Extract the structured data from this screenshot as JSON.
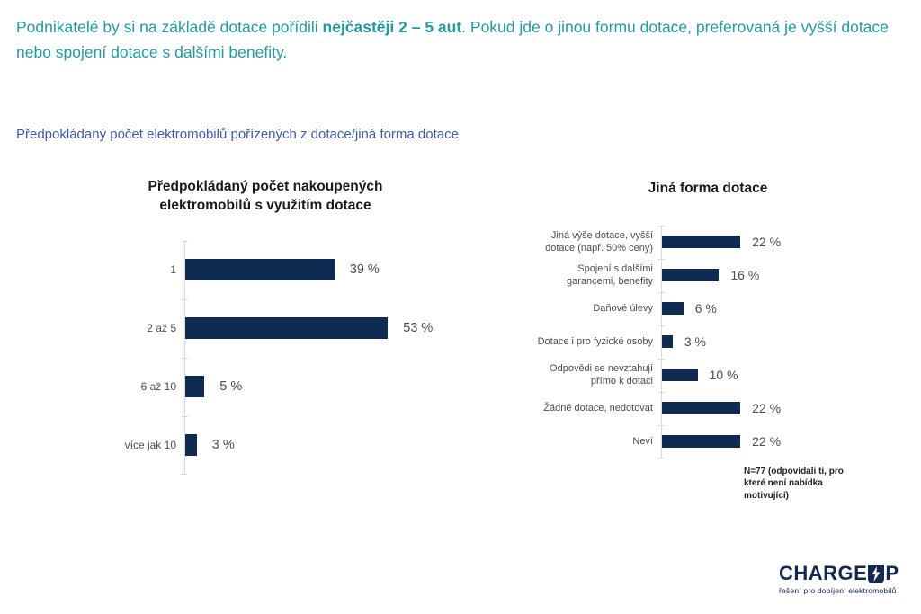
{
  "header": {
    "part1": "Podnikatelé by si na základě dotace pořídili ",
    "bold": "nejčastěji 2 – 5 aut",
    "part2": ". Pokud jde o jinou formu dotace, preferovaná je vyšší dotace nebo spojení dotace s dalšími benefity."
  },
  "subtitle": "Předpokládaný počet elektromobilů pořízených z dotace/jiná forma dotace",
  "chart_data": [
    {
      "type": "bar",
      "orientation": "horizontal",
      "title": "Předpokládaný počet nakoupených\nelektromobilů s využitím dotace",
      "categories": [
        "1",
        "2 až 5",
        "6 až 10",
        "více jak 10"
      ],
      "values": [
        39,
        53,
        5,
        3
      ],
      "value_suffix": " %",
      "xlim": [
        0,
        60
      ],
      "grid": false,
      "legend": false,
      "bar_color": "#0f2b52"
    },
    {
      "type": "bar",
      "orientation": "horizontal",
      "title": "Jiná forma dotace",
      "categories": [
        "Jiná výše dotace, vyšší\ndotace (např. 50% ceny)",
        "Spojení s dalšími\ngarancemi, benefity",
        "Daňové úlevy",
        "Dotace i pro fyzické osoby",
        "Odpovědi se nevztahují\npřímo k dotaci",
        "Žádné dotace, nedotovat",
        "Neví"
      ],
      "values": [
        22,
        16,
        6,
        3,
        10,
        22,
        22
      ],
      "value_suffix": " %",
      "xlim": [
        0,
        25
      ],
      "grid": false,
      "legend": false,
      "bar_color": "#0f2b52",
      "note": "N=77 (odpovídali ti, pro které není nabídka motivující)"
    }
  ],
  "logo": {
    "brand_part1": "CHARGE",
    "brand_part2": "P",
    "bolt_icon": "lightning-bolt-in-u",
    "tagline": "řešení pro dobíjení elektromobilů"
  },
  "colors": {
    "header_teal": "#2599a2",
    "subtitle_blue": "#3e5ca7",
    "bar_navy": "#0f2b52",
    "label_gray": "#4d4d4d",
    "axis_gray": "#d9d9d9",
    "logo_navy": "#12294d"
  }
}
